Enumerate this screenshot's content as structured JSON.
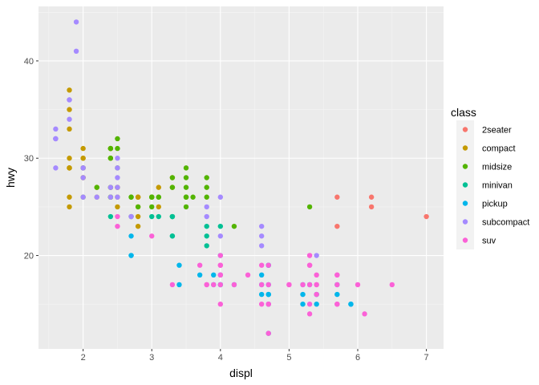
{
  "chart_data": {
    "type": "scatter",
    "xlabel": "displ",
    "ylabel": "hwy",
    "xlim": [
      1.35,
      7.25
    ],
    "ylim": [
      10.4,
      45.6
    ],
    "x_ticks": [
      2,
      3,
      4,
      5,
      6,
      7
    ],
    "y_ticks": [
      20,
      30,
      40
    ],
    "grid": true,
    "legend": {
      "title": "class",
      "placement": "right"
    },
    "series": [
      {
        "name": "2seater",
        "color": "#F8766D",
        "points": [
          [
            5.7,
            26
          ],
          [
            5.7,
            23
          ],
          [
            6.2,
            26
          ],
          [
            6.2,
            25
          ],
          [
            7.0,
            24
          ]
        ]
      },
      {
        "name": "compact",
        "color": "#C49A00",
        "points": [
          [
            1.8,
            29
          ],
          [
            1.8,
            29
          ],
          [
            2.0,
            31
          ],
          [
            2.0,
            30
          ],
          [
            2.8,
            26
          ],
          [
            2.8,
            26
          ],
          [
            3.1,
            27
          ],
          [
            1.8,
            26
          ],
          [
            1.8,
            25
          ],
          [
            2.0,
            28
          ],
          [
            2.0,
            29
          ],
          [
            2.8,
            26
          ],
          [
            3.1,
            25
          ],
          [
            2.2,
            27
          ],
          [
            2.2,
            26
          ],
          [
            2.4,
            31
          ],
          [
            2.4,
            30
          ],
          [
            3.0,
            26
          ],
          [
            1.8,
            33
          ],
          [
            1.8,
            37
          ],
          [
            1.8,
            35
          ],
          [
            2.5,
            27
          ],
          [
            2.5,
            25
          ],
          [
            2.8,
            23
          ],
          [
            1.8,
            29
          ],
          [
            1.8,
            29
          ],
          [
            2.0,
            29
          ],
          [
            2.4,
            31
          ],
          [
            2.4,
            27
          ],
          [
            2.8,
            25
          ],
          [
            2.8,
            24
          ],
          [
            3.3,
            28
          ],
          [
            3.3,
            27
          ],
          [
            2.0,
            28
          ],
          [
            2.0,
            30
          ],
          [
            1.8,
            30
          ],
          [
            2.5,
            26
          ],
          [
            2.5,
            27
          ]
        ]
      },
      {
        "name": "midsize",
        "color": "#53B400",
        "points": [
          [
            2.4,
            30
          ],
          [
            2.4,
            31
          ],
          [
            3.3,
            28
          ],
          [
            3.3,
            27
          ],
          [
            3.1,
            26
          ],
          [
            3.5,
            28
          ],
          [
            3.5,
            26
          ],
          [
            3.6,
            26
          ],
          [
            3.8,
            28
          ],
          [
            3.8,
            27
          ],
          [
            2.5,
            32
          ],
          [
            2.5,
            31
          ],
          [
            3.5,
            29
          ],
          [
            3.5,
            27
          ],
          [
            3.0,
            26
          ],
          [
            3.0,
            25
          ],
          [
            3.5,
            26
          ],
          [
            2.4,
            27
          ],
          [
            2.4,
            26
          ],
          [
            3.0,
            26
          ],
          [
            3.3,
            24
          ],
          [
            2.7,
            24
          ],
          [
            2.7,
            26
          ],
          [
            2.7,
            26
          ],
          [
            2.0,
            29
          ],
          [
            2.0,
            26
          ],
          [
            2.8,
            25
          ],
          [
            3.1,
            26
          ],
          [
            4.2,
            23
          ],
          [
            5.3,
            25
          ],
          [
            2.2,
            27
          ],
          [
            2.4,
            26
          ],
          [
            2.4,
            26
          ],
          [
            3.0,
            26
          ],
          [
            3.5,
            25
          ],
          [
            3.8,
            26
          ],
          [
            2.4,
            30
          ],
          [
            2.4,
            31
          ],
          [
            3.5,
            26
          ],
          [
            2.5,
            29
          ],
          [
            3.0,
            26
          ]
        ]
      },
      {
        "name": "minivan",
        "color": "#00C094",
        "points": [
          [
            2.4,
            24
          ],
          [
            3.0,
            24
          ],
          [
            3.3,
            22
          ],
          [
            3.3,
            22
          ],
          [
            3.3,
            24
          ],
          [
            3.3,
            24
          ],
          [
            3.8,
            21
          ],
          [
            3.8,
            22
          ],
          [
            3.8,
            23
          ],
          [
            4.0,
            23
          ],
          [
            3.1,
            24
          ]
        ]
      },
      {
        "name": "pickup",
        "color": "#00B6EB",
        "points": [
          [
            2.7,
            20
          ],
          [
            2.7,
            22
          ],
          [
            2.7,
            20
          ],
          [
            3.4,
            17
          ],
          [
            3.4,
            19
          ],
          [
            3.7,
            18
          ],
          [
            3.9,
            17
          ],
          [
            3.9,
            18
          ],
          [
            4.0,
            17
          ],
          [
            4.0,
            20
          ],
          [
            4.2,
            17
          ],
          [
            4.6,
            17
          ],
          [
            4.6,
            16
          ],
          [
            4.7,
            19
          ],
          [
            4.7,
            16
          ],
          [
            4.7,
            15
          ],
          [
            5.2,
            17
          ],
          [
            5.2,
            15
          ],
          [
            5.2,
            16
          ],
          [
            5.4,
            15
          ],
          [
            5.7,
            17
          ],
          [
            5.9,
            15
          ],
          [
            4.0,
            17
          ],
          [
            4.7,
            16
          ],
          [
            4.7,
            19
          ],
          [
            5.7,
            16
          ],
          [
            5.3,
            17
          ],
          [
            5.4,
            16
          ],
          [
            4.6,
            18
          ],
          [
            4.7,
            17
          ],
          [
            5.9,
            15
          ],
          [
            4.7,
            12
          ],
          [
            4.0,
            18
          ]
        ]
      },
      {
        "name": "subcompact",
        "color": "#A58AFF",
        "points": [
          [
            3.8,
            25
          ],
          [
            3.8,
            24
          ],
          [
            4.0,
            26
          ],
          [
            4.0,
            22
          ],
          [
            4.6,
            21
          ],
          [
            4.6,
            22
          ],
          [
            5.4,
            20
          ],
          [
            1.6,
            33
          ],
          [
            1.6,
            32
          ],
          [
            1.6,
            32
          ],
          [
            1.6,
            29
          ],
          [
            1.6,
            32
          ],
          [
            1.8,
            34
          ],
          [
            1.8,
            36
          ],
          [
            1.8,
            36
          ],
          [
            2.0,
            29
          ],
          [
            2.4,
            26
          ],
          [
            2.4,
            27
          ],
          [
            2.5,
            30
          ],
          [
            2.5,
            27
          ],
          [
            2.7,
            24
          ],
          [
            2.7,
            24
          ],
          [
            1.9,
            44
          ],
          [
            1.9,
            41
          ],
          [
            2.0,
            29
          ],
          [
            2.0,
            26
          ],
          [
            2.0,
            28
          ],
          [
            2.2,
            26
          ],
          [
            2.5,
            26
          ],
          [
            2.5,
            28
          ],
          [
            2.5,
            29
          ],
          [
            4.6,
            23
          ]
        ]
      },
      {
        "name": "suv",
        "color": "#FB61D7",
        "points": [
          [
            5.3,
            20
          ],
          [
            5.3,
            15
          ],
          [
            5.3,
            20
          ],
          [
            5.7,
            17
          ],
          [
            6.0,
            17
          ],
          [
            5.7,
            15
          ],
          [
            6.5,
            17
          ],
          [
            3.7,
            19
          ],
          [
            3.9,
            17
          ],
          [
            4.7,
            17
          ],
          [
            4.7,
            19
          ],
          [
            5.2,
            17
          ],
          [
            5.7,
            18
          ],
          [
            3.0,
            22
          ],
          [
            4.0,
            17
          ],
          [
            4.0,
            19
          ],
          [
            4.6,
            17
          ],
          [
            5.4,
            17
          ],
          [
            4.0,
            15
          ],
          [
            4.7,
            15
          ],
          [
            5.3,
            19
          ],
          [
            4.0,
            18
          ],
          [
            4.2,
            17
          ],
          [
            4.4,
            18
          ],
          [
            4.6,
            19
          ],
          [
            5.0,
            17
          ],
          [
            5.4,
            16
          ],
          [
            5.4,
            18
          ],
          [
            6.1,
            14
          ],
          [
            4.0,
            20
          ],
          [
            5.7,
            18
          ],
          [
            3.3,
            17
          ],
          [
            3.8,
            17
          ],
          [
            3.8,
            17
          ],
          [
            4.0,
            19
          ],
          [
            4.0,
            18
          ],
          [
            4.6,
            15
          ],
          [
            5.0,
            17
          ],
          [
            5.3,
            14
          ],
          [
            2.5,
            24
          ],
          [
            2.5,
            23
          ],
          [
            5.3,
            19
          ],
          [
            5.4,
            17
          ],
          [
            4.7,
            15
          ],
          [
            5.7,
            15
          ],
          [
            4.7,
            12
          ],
          [
            5.3,
            17
          ]
        ]
      }
    ]
  }
}
